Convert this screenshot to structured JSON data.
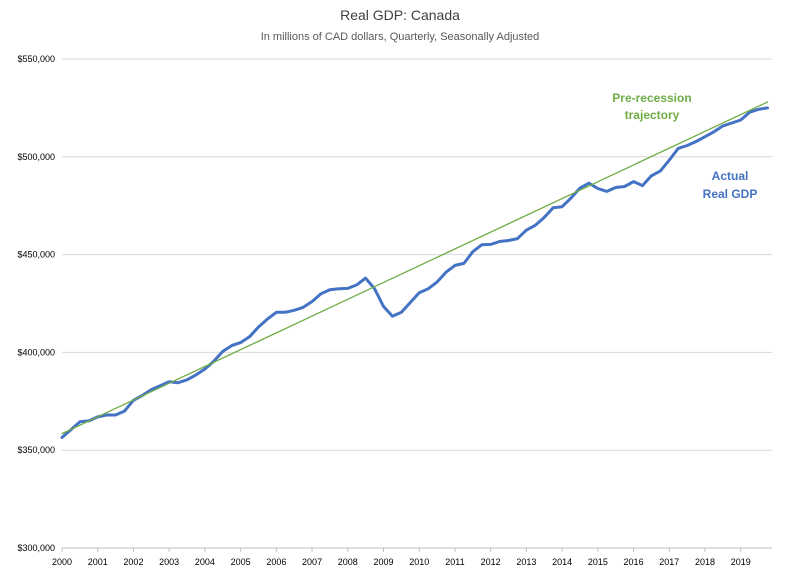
{
  "chart_data": {
    "type": "line",
    "title": "Real GDP: Canada",
    "subtitle": "In millions of CAD dollars, Quarterly, Seasonally Adjusted",
    "xlabel": "",
    "ylabel": "",
    "xlim": [
      2000.0,
      2019.875
    ],
    "ylim": [
      300000,
      550000
    ],
    "x_ticks": [
      "2000",
      "2001",
      "2002",
      "2003",
      "2004",
      "2005",
      "2006",
      "2007",
      "2008",
      "2009",
      "2010",
      "2011",
      "2012",
      "2013",
      "2014",
      "2015",
      "2016",
      "2017",
      "2018",
      "2019"
    ],
    "y_ticks": [
      "$300,000",
      "$350,000",
      "$400,000",
      "$450,000",
      "$500,000",
      "$550,000"
    ],
    "grid": "horizontal",
    "legend": "none",
    "series": [
      {
        "name": "",
        "color": "#4472C4",
        "x": [
          2000.0,
          2000.25,
          2000.5,
          2000.75,
          2001.0,
          2001.25,
          2001.5,
          2001.75,
          2002.0,
          2002.25,
          2002.5,
          2002.75,
          2003.0,
          2003.25,
          2003.5,
          2003.75,
          2004.0,
          2004.25,
          2004.5,
          2004.75,
          2005.0,
          2005.25,
          2005.5,
          2005.75,
          2006.0,
          2006.25,
          2006.5,
          2006.75,
          2007.0,
          2007.25,
          2007.5,
          2007.75,
          2008.0,
          2008.25,
          2008.5,
          2008.75,
          2009.0,
          2009.25,
          2009.5,
          2009.75,
          2010.0,
          2010.25,
          2010.5,
          2010.75,
          2011.0,
          2011.25,
          2011.5,
          2011.75,
          2012.0,
          2012.25,
          2012.5,
          2012.75,
          2013.0,
          2013.25,
          2013.5,
          2013.75,
          2014.0,
          2014.25,
          2014.5,
          2014.75,
          2015.0,
          2015.25,
          2015.5,
          2015.75,
          2016.0,
          2016.25,
          2016.5,
          2016.75,
          2017.0,
          2017.25,
          2017.5,
          2017.75,
          2018.0,
          2018.25,
          2018.5,
          2018.75,
          2019.0,
          2019.25,
          2019.5,
          2019.75
        ],
        "values": [
          356500,
          360500,
          364500,
          365000,
          367000,
          368000,
          368000,
          370000,
          375500,
          378000,
          381000,
          383000,
          385000,
          384500,
          386000,
          388500,
          391500,
          395500,
          400500,
          403500,
          405000,
          408000,
          413000,
          417000,
          420500,
          420500,
          421500,
          423000,
          426000,
          430000,
          432000,
          432500,
          432700,
          434500,
          438000,
          432500,
          423500,
          418500,
          420500,
          425500,
          430500,
          432500,
          436000,
          441000,
          444500,
          445500,
          451500,
          455000,
          455200,
          456700,
          457200,
          458200,
          462500,
          465000,
          469000,
          474000,
          474500,
          479000,
          484000,
          486500,
          483800,
          482300,
          484300,
          484800,
          487300,
          485300,
          490300,
          492800,
          498300,
          504300,
          505800,
          507800,
          510300,
          512800,
          515800,
          517300,
          518800,
          522800,
          524300,
          525000
        ]
      },
      {
        "name": "",
        "color": "#70AD47",
        "x": [
          2000.0,
          2019.75
        ],
        "values": [
          358500,
          528000
        ]
      }
    ],
    "annotations": [
      {
        "text": "Pre-recession",
        "color": "#70AD47"
      },
      {
        "text": "trajectory",
        "color": "#70AD47"
      },
      {
        "text": "Actual",
        "color": "#4472C4"
      },
      {
        "text": "Real GDP",
        "color": "#4472C4"
      }
    ]
  }
}
